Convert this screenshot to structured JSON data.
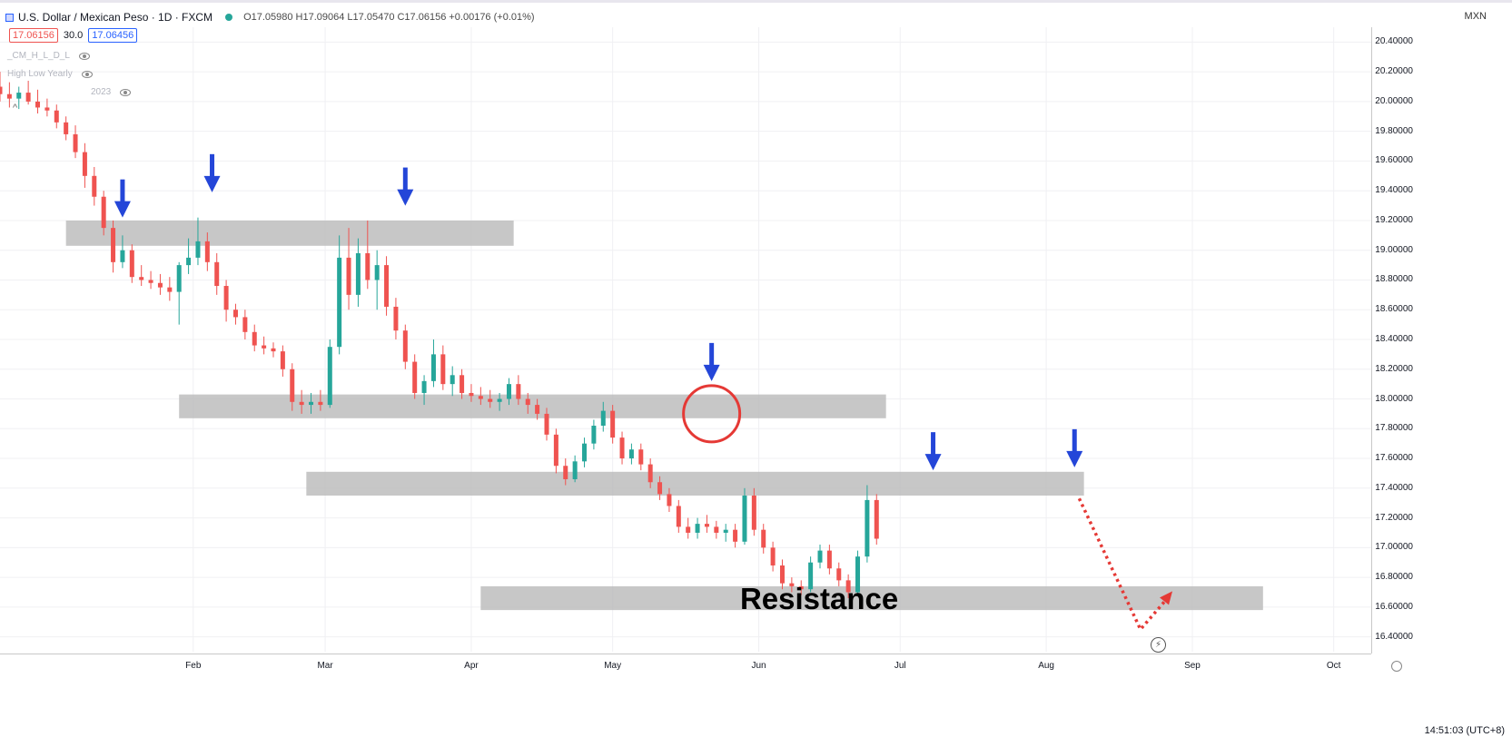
{
  "header": {
    "title": "U.S. Dollar / Mexican Peso · 1D · FXCM",
    "ohlc": "O17.05980 H17.09064 L17.05470 C17.06156 +0.00176 (+0.01%)",
    "bid": "17.06156",
    "spread": "30.0",
    "ask": "17.06456",
    "indicator_1": "_CM_H_L_D_L",
    "indicator_2": "High Low Yearly",
    "indicator_2_suffix": "2023"
  },
  "axis": {
    "currency": "MXN",
    "clock": "14:51:03 (UTC+8)"
  },
  "colors": {
    "up": "#26a69a",
    "down": "#ef5350",
    "zone": "#b9b9b9",
    "arrow": "#2446d8",
    "circle": "#e53935",
    "dotted": "#e53935"
  },
  "chart_data": {
    "type": "candlestick",
    "instrument": "USD/MXN",
    "timeframe": "1D",
    "ylim": [
      16.3,
      20.5
    ],
    "y_ticks": [
      "20.40000",
      "20.20000",
      "20.00000",
      "19.80000",
      "19.60000",
      "19.40000",
      "19.20000",
      "19.00000",
      "18.80000",
      "18.60000",
      "18.40000",
      "18.20000",
      "18.00000",
      "17.80000",
      "17.60000",
      "17.40000",
      "17.20000",
      "17.00000",
      "16.80000",
      "16.60000",
      "16.40000"
    ],
    "x_ticks": [
      "Feb",
      "Mar",
      "Apr",
      "May",
      "Jun",
      "Jul",
      "Aug",
      "Sep",
      "Oct"
    ],
    "zones": [
      {
        "from": "2023-01-05",
        "to": "2023-04-10",
        "low": 19.03,
        "high": 19.2
      },
      {
        "from": "2023-01-29",
        "to": "2023-06-28",
        "low": 17.87,
        "high": 18.03
      },
      {
        "from": "2023-02-25",
        "to": "2023-08-09",
        "low": 17.35,
        "high": 17.51
      },
      {
        "from": "2023-04-03",
        "to": "2023-09-16",
        "low": 16.58,
        "high": 16.74
      }
    ],
    "zone_label": "Resistance",
    "arrows": [
      {
        "date": "2023-01-17",
        "price": 19.22
      },
      {
        "date": "2023-02-05",
        "price": 19.39
      },
      {
        "date": "2023-03-18",
        "price": 19.3
      },
      {
        "date": "2023-05-22",
        "price": 18.12
      },
      {
        "date": "2023-07-08",
        "price": 17.52
      },
      {
        "date": "2023-08-07",
        "price": 17.54
      }
    ],
    "highlight_circle": {
      "date": "2023-05-22",
      "price": 17.9
    },
    "projection": [
      {
        "date": "2023-08-08",
        "price": 17.33
      },
      {
        "date": "2023-08-21",
        "price": 16.45
      },
      {
        "date": "2023-08-27",
        "price": 16.67
      }
    ],
    "candles": [
      {
        "date": "2022-12-22",
        "o": 20.1,
        "h": 20.2,
        "l": 20.0,
        "c": 20.05
      },
      {
        "date": "2022-12-24",
        "o": 20.05,
        "h": 20.13,
        "l": 19.96,
        "c": 20.02
      },
      {
        "date": "2022-12-26",
        "o": 20.02,
        "h": 20.1,
        "l": 19.95,
        "c": 20.06
      },
      {
        "date": "2022-12-28",
        "o": 20.06,
        "h": 20.14,
        "l": 19.98,
        "c": 20.0
      },
      {
        "date": "2022-12-30",
        "o": 20.0,
        "h": 20.08,
        "l": 19.92,
        "c": 19.96
      },
      {
        "date": "2023-01-01",
        "o": 19.96,
        "h": 20.02,
        "l": 19.9,
        "c": 19.94
      },
      {
        "date": "2023-01-03",
        "o": 19.94,
        "h": 19.98,
        "l": 19.82,
        "c": 19.86
      },
      {
        "date": "2023-01-05",
        "o": 19.86,
        "h": 19.9,
        "l": 19.74,
        "c": 19.78
      },
      {
        "date": "2023-01-07",
        "o": 19.78,
        "h": 19.84,
        "l": 19.62,
        "c": 19.66
      },
      {
        "date": "2023-01-09",
        "o": 19.66,
        "h": 19.72,
        "l": 19.42,
        "c": 19.5
      },
      {
        "date": "2023-01-11",
        "o": 19.5,
        "h": 19.56,
        "l": 19.3,
        "c": 19.36
      },
      {
        "date": "2023-01-13",
        "o": 19.36,
        "h": 19.4,
        "l": 19.1,
        "c": 19.15
      },
      {
        "date": "2023-01-15",
        "o": 19.15,
        "h": 19.2,
        "l": 18.85,
        "c": 18.92
      },
      {
        "date": "2023-01-17",
        "o": 18.92,
        "h": 19.1,
        "l": 18.88,
        "c": 19.0
      },
      {
        "date": "2023-01-19",
        "o": 19.0,
        "h": 19.04,
        "l": 18.78,
        "c": 18.82
      },
      {
        "date": "2023-01-21",
        "o": 18.82,
        "h": 18.9,
        "l": 18.76,
        "c": 18.8
      },
      {
        "date": "2023-01-23",
        "o": 18.8,
        "h": 18.86,
        "l": 18.74,
        "c": 18.78
      },
      {
        "date": "2023-01-25",
        "o": 18.78,
        "h": 18.84,
        "l": 18.7,
        "c": 18.75
      },
      {
        "date": "2023-01-27",
        "o": 18.75,
        "h": 18.82,
        "l": 18.66,
        "c": 18.72
      },
      {
        "date": "2023-01-29",
        "o": 18.72,
        "h": 18.92,
        "l": 18.5,
        "c": 18.9
      },
      {
        "date": "2023-01-31",
        "o": 18.9,
        "h": 19.08,
        "l": 18.84,
        "c": 18.95
      },
      {
        "date": "2023-02-02",
        "o": 18.95,
        "h": 19.22,
        "l": 18.9,
        "c": 19.06
      },
      {
        "date": "2023-02-04",
        "o": 19.06,
        "h": 19.12,
        "l": 18.86,
        "c": 18.92
      },
      {
        "date": "2023-02-06",
        "o": 18.92,
        "h": 18.98,
        "l": 18.7,
        "c": 18.76
      },
      {
        "date": "2023-02-08",
        "o": 18.76,
        "h": 18.8,
        "l": 18.52,
        "c": 18.6
      },
      {
        "date": "2023-02-10",
        "o": 18.6,
        "h": 18.64,
        "l": 18.5,
        "c": 18.55
      },
      {
        "date": "2023-02-12",
        "o": 18.55,
        "h": 18.6,
        "l": 18.4,
        "c": 18.45
      },
      {
        "date": "2023-02-14",
        "o": 18.45,
        "h": 18.5,
        "l": 18.32,
        "c": 18.36
      },
      {
        "date": "2023-02-16",
        "o": 18.36,
        "h": 18.42,
        "l": 18.3,
        "c": 18.34
      },
      {
        "date": "2023-02-18",
        "o": 18.34,
        "h": 18.38,
        "l": 18.28,
        "c": 18.32
      },
      {
        "date": "2023-02-20",
        "o": 18.32,
        "h": 18.36,
        "l": 18.15,
        "c": 18.2
      },
      {
        "date": "2023-02-22",
        "o": 18.2,
        "h": 18.24,
        "l": 17.92,
        "c": 17.98
      },
      {
        "date": "2023-02-24",
        "o": 17.98,
        "h": 18.06,
        "l": 17.9,
        "c": 17.96
      },
      {
        "date": "2023-02-26",
        "o": 17.96,
        "h": 18.04,
        "l": 17.9,
        "c": 17.98
      },
      {
        "date": "2023-02-28",
        "o": 17.98,
        "h": 18.06,
        "l": 17.92,
        "c": 17.96
      },
      {
        "date": "2023-03-02",
        "o": 17.96,
        "h": 18.4,
        "l": 17.94,
        "c": 18.35
      },
      {
        "date": "2023-03-04",
        "o": 18.35,
        "h": 19.1,
        "l": 18.3,
        "c": 18.95
      },
      {
        "date": "2023-03-06",
        "o": 18.95,
        "h": 19.15,
        "l": 18.6,
        "c": 18.7
      },
      {
        "date": "2023-03-08",
        "o": 18.7,
        "h": 19.08,
        "l": 18.62,
        "c": 18.98
      },
      {
        "date": "2023-03-10",
        "o": 18.98,
        "h": 19.2,
        "l": 18.74,
        "c": 18.8
      },
      {
        "date": "2023-03-12",
        "o": 18.8,
        "h": 19.0,
        "l": 18.6,
        "c": 18.9
      },
      {
        "date": "2023-03-14",
        "o": 18.9,
        "h": 18.96,
        "l": 18.56,
        "c": 18.62
      },
      {
        "date": "2023-03-16",
        "o": 18.62,
        "h": 18.68,
        "l": 18.4,
        "c": 18.46
      },
      {
        "date": "2023-03-18",
        "o": 18.46,
        "h": 18.5,
        "l": 18.2,
        "c": 18.25
      },
      {
        "date": "2023-03-20",
        "o": 18.25,
        "h": 18.3,
        "l": 18.0,
        "c": 18.04
      },
      {
        "date": "2023-03-22",
        "o": 18.04,
        "h": 18.16,
        "l": 17.96,
        "c": 18.12
      },
      {
        "date": "2023-03-24",
        "o": 18.12,
        "h": 18.4,
        "l": 18.08,
        "c": 18.3
      },
      {
        "date": "2023-03-26",
        "o": 18.3,
        "h": 18.36,
        "l": 18.06,
        "c": 18.1
      },
      {
        "date": "2023-03-28",
        "o": 18.1,
        "h": 18.22,
        "l": 18.02,
        "c": 18.16
      },
      {
        "date": "2023-03-30",
        "o": 18.16,
        "h": 18.2,
        "l": 18.0,
        "c": 18.04
      },
      {
        "date": "2023-04-01",
        "o": 18.04,
        "h": 18.1,
        "l": 17.98,
        "c": 18.02
      },
      {
        "date": "2023-04-03",
        "o": 18.02,
        "h": 18.08,
        "l": 17.96,
        "c": 18.0
      },
      {
        "date": "2023-04-05",
        "o": 18.0,
        "h": 18.06,
        "l": 17.94,
        "c": 17.98
      },
      {
        "date": "2023-04-07",
        "o": 17.98,
        "h": 18.04,
        "l": 17.92,
        "c": 18.0
      },
      {
        "date": "2023-04-09",
        "o": 18.0,
        "h": 18.14,
        "l": 17.96,
        "c": 18.1
      },
      {
        "date": "2023-04-11",
        "o": 18.1,
        "h": 18.16,
        "l": 17.96,
        "c": 18.0
      },
      {
        "date": "2023-04-13",
        "o": 18.0,
        "h": 18.04,
        "l": 17.9,
        "c": 17.96
      },
      {
        "date": "2023-04-15",
        "o": 17.96,
        "h": 18.0,
        "l": 17.86,
        "c": 17.9
      },
      {
        "date": "2023-04-17",
        "o": 17.9,
        "h": 17.94,
        "l": 17.72,
        "c": 17.76
      },
      {
        "date": "2023-04-19",
        "o": 17.76,
        "h": 17.8,
        "l": 17.5,
        "c": 17.55
      },
      {
        "date": "2023-04-21",
        "o": 17.55,
        "h": 17.6,
        "l": 17.42,
        "c": 17.46
      },
      {
        "date": "2023-04-23",
        "o": 17.46,
        "h": 17.62,
        "l": 17.44,
        "c": 17.58
      },
      {
        "date": "2023-04-25",
        "o": 17.58,
        "h": 17.74,
        "l": 17.54,
        "c": 17.7
      },
      {
        "date": "2023-04-27",
        "o": 17.7,
        "h": 17.86,
        "l": 17.66,
        "c": 17.82
      },
      {
        "date": "2023-04-29",
        "o": 17.82,
        "h": 17.98,
        "l": 17.78,
        "c": 17.92
      },
      {
        "date": "2023-05-01",
        "o": 17.92,
        "h": 17.96,
        "l": 17.7,
        "c": 17.74
      },
      {
        "date": "2023-05-03",
        "o": 17.74,
        "h": 17.78,
        "l": 17.56,
        "c": 17.6
      },
      {
        "date": "2023-05-05",
        "o": 17.6,
        "h": 17.7,
        "l": 17.56,
        "c": 17.66
      },
      {
        "date": "2023-05-07",
        "o": 17.66,
        "h": 17.7,
        "l": 17.52,
        "c": 17.56
      },
      {
        "date": "2023-05-09",
        "o": 17.56,
        "h": 17.6,
        "l": 17.4,
        "c": 17.44
      },
      {
        "date": "2023-05-11",
        "o": 17.44,
        "h": 17.48,
        "l": 17.32,
        "c": 17.36
      },
      {
        "date": "2023-05-13",
        "o": 17.36,
        "h": 17.4,
        "l": 17.24,
        "c": 17.28
      },
      {
        "date": "2023-05-15",
        "o": 17.28,
        "h": 17.32,
        "l": 17.1,
        "c": 17.14
      },
      {
        "date": "2023-05-17",
        "o": 17.14,
        "h": 17.2,
        "l": 17.06,
        "c": 17.1
      },
      {
        "date": "2023-05-19",
        "o": 17.1,
        "h": 17.2,
        "l": 17.06,
        "c": 17.16
      },
      {
        "date": "2023-05-21",
        "o": 17.16,
        "h": 17.22,
        "l": 17.1,
        "c": 17.14
      },
      {
        "date": "2023-05-23",
        "o": 17.14,
        "h": 17.18,
        "l": 17.06,
        "c": 17.1
      },
      {
        "date": "2023-05-25",
        "o": 17.1,
        "h": 17.16,
        "l": 17.04,
        "c": 17.12
      },
      {
        "date": "2023-05-27",
        "o": 17.12,
        "h": 17.16,
        "l": 17.0,
        "c": 17.04
      },
      {
        "date": "2023-05-29",
        "o": 17.04,
        "h": 17.4,
        "l": 17.02,
        "c": 17.35
      },
      {
        "date": "2023-05-31",
        "o": 17.35,
        "h": 17.4,
        "l": 17.08,
        "c": 17.12
      },
      {
        "date": "2023-06-02",
        "o": 17.12,
        "h": 17.16,
        "l": 16.96,
        "c": 17.0
      },
      {
        "date": "2023-06-04",
        "o": 17.0,
        "h": 17.04,
        "l": 16.84,
        "c": 16.88
      },
      {
        "date": "2023-06-06",
        "o": 16.88,
        "h": 16.92,
        "l": 16.72,
        "c": 16.76
      },
      {
        "date": "2023-06-08",
        "o": 16.76,
        "h": 16.8,
        "l": 16.7,
        "c": 16.74
      },
      {
        "date": "2023-06-10",
        "o": 16.74,
        "h": 16.78,
        "l": 16.68,
        "c": 16.72
      },
      {
        "date": "2023-06-12",
        "o": 16.72,
        "h": 16.94,
        "l": 16.7,
        "c": 16.9
      },
      {
        "date": "2023-06-14",
        "o": 16.9,
        "h": 17.02,
        "l": 16.86,
        "c": 16.98
      },
      {
        "date": "2023-06-16",
        "o": 16.98,
        "h": 17.02,
        "l": 16.82,
        "c": 16.86
      },
      {
        "date": "2023-06-18",
        "o": 16.86,
        "h": 16.9,
        "l": 16.74,
        "c": 16.78
      },
      {
        "date": "2023-06-20",
        "o": 16.78,
        "h": 16.82,
        "l": 16.66,
        "c": 16.7
      },
      {
        "date": "2023-06-22",
        "o": 16.7,
        "h": 16.98,
        "l": 16.68,
        "c": 16.94
      },
      {
        "date": "2023-06-24",
        "o": 16.94,
        "h": 17.42,
        "l": 16.9,
        "c": 17.32
      },
      {
        "date": "2023-06-26",
        "o": 17.32,
        "h": 17.36,
        "l": 17.02,
        "c": 17.06
      }
    ]
  }
}
